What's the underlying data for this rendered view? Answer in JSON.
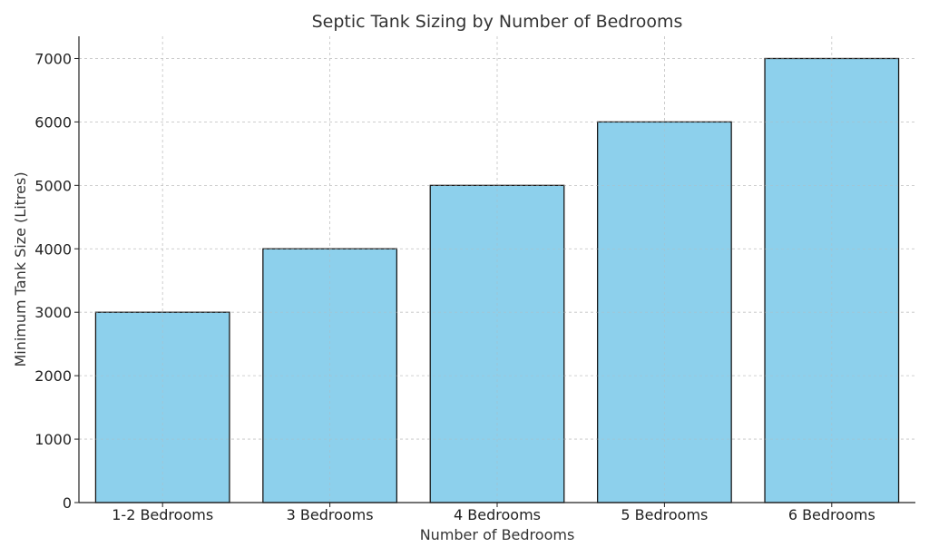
{
  "chart_data": {
    "type": "bar",
    "title": "Septic Tank Sizing by Number of Bedrooms",
    "xlabel": "Number of Bedrooms",
    "ylabel": "Minimum Tank Size (Litres)",
    "categories": [
      "1-2 Bedrooms",
      "3 Bedrooms",
      "4 Bedrooms",
      "5 Bedrooms",
      "6 Bedrooms"
    ],
    "values": [
      3000,
      4000,
      5000,
      6000,
      7000
    ],
    "ylim": [
      0,
      7350
    ],
    "yticks": [
      0,
      1000,
      2000,
      3000,
      4000,
      5000,
      6000,
      7000
    ],
    "grid": true,
    "bar_color": "#87CEEB",
    "edge_color": "#1a1a1a"
  }
}
